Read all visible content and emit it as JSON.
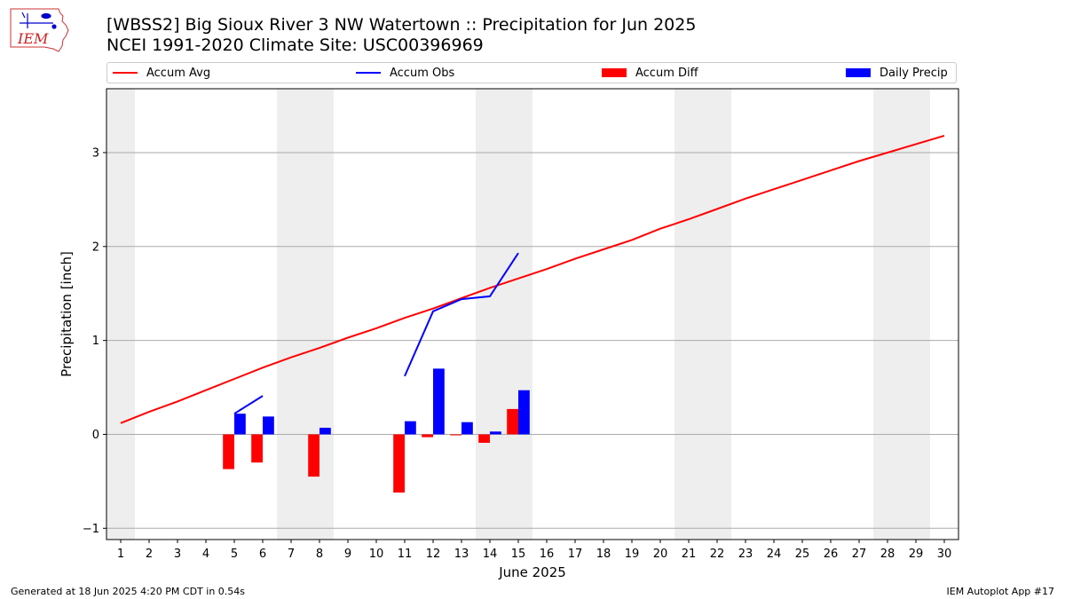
{
  "header": {
    "title_line1": "[WBSS2] Big Sioux River 3 NW Watertown :: Precipitation for Jun 2025",
    "title_line2": "NCEI 1991-2020 Climate Site: USC00396969"
  },
  "logo": {
    "text": "IEM"
  },
  "footer": {
    "left": "Generated at 18 Jun 2025 4:20 PM CDT in 0.54s",
    "right": "IEM Autoplot App #17"
  },
  "chart_data": {
    "type": "bar",
    "xlabel": "June 2025",
    "ylabel": "Precipitation [inch]",
    "xlim": [
      0.5,
      30.5
    ],
    "ylim": [
      -1.12,
      3.68
    ],
    "yticks": [
      -1,
      0,
      1,
      2,
      3
    ],
    "xticks": [
      1,
      2,
      3,
      4,
      5,
      6,
      7,
      8,
      9,
      10,
      11,
      12,
      13,
      14,
      15,
      16,
      17,
      18,
      19,
      20,
      21,
      22,
      23,
      24,
      25,
      26,
      27,
      28,
      29,
      30
    ],
    "grid": "horizontal",
    "legend_position": "top",
    "weekend_shading_days": [
      1,
      7,
      8,
      14,
      15,
      21,
      22,
      28,
      29
    ],
    "legend": [
      {
        "label": "Accum Avg",
        "kind": "line",
        "color": "#ff0000"
      },
      {
        "label": "Accum Obs",
        "kind": "line",
        "color": "#0000ff"
      },
      {
        "label": "Accum Diff",
        "kind": "bar",
        "color": "#ff0000"
      },
      {
        "label": "Daily Precip",
        "kind": "bar",
        "color": "#0000ff"
      }
    ],
    "accum_avg": {
      "days": [
        1,
        2,
        3,
        4,
        5,
        6,
        7,
        8,
        9,
        10,
        11,
        12,
        13,
        14,
        15,
        16,
        17,
        18,
        19,
        20,
        21,
        22,
        23,
        24,
        25,
        26,
        27,
        28,
        29,
        30
      ],
      "values": [
        0.12,
        0.24,
        0.35,
        0.47,
        0.59,
        0.71,
        0.82,
        0.92,
        1.03,
        1.13,
        1.24,
        1.34,
        1.45,
        1.56,
        1.66,
        1.76,
        1.87,
        1.97,
        2.07,
        2.19,
        2.29,
        2.4,
        2.51,
        2.61,
        2.71,
        2.81,
        2.91,
        3.0,
        3.09,
        3.18
      ]
    },
    "accum_obs": {
      "segments": [
        {
          "days": [
            5,
            6
          ],
          "values": [
            0.22,
            0.41
          ]
        },
        {
          "days": [
            11,
            12,
            13,
            14,
            15
          ],
          "values": [
            0.62,
            1.31,
            1.44,
            1.47,
            1.93
          ]
        }
      ]
    },
    "accum_diff": {
      "days": [
        5,
        6,
        8,
        11,
        12,
        13,
        14,
        15
      ],
      "values": [
        -0.37,
        -0.3,
        -0.45,
        -0.62,
        -0.03,
        -0.01,
        -0.09,
        0.27
      ]
    },
    "daily_precip": {
      "days": [
        5,
        6,
        8,
        11,
        12,
        13,
        14,
        15
      ],
      "values": [
        0.22,
        0.19,
        0.07,
        0.14,
        0.7,
        0.13,
        0.03,
        0.47
      ]
    },
    "colors": {
      "weekend_shade": "#eeeeee",
      "grid": "#aaaaaa",
      "diff": "#ff0000",
      "precip": "#0000ff",
      "avg_line": "#ff0000",
      "obs_line": "#0000ff"
    }
  }
}
